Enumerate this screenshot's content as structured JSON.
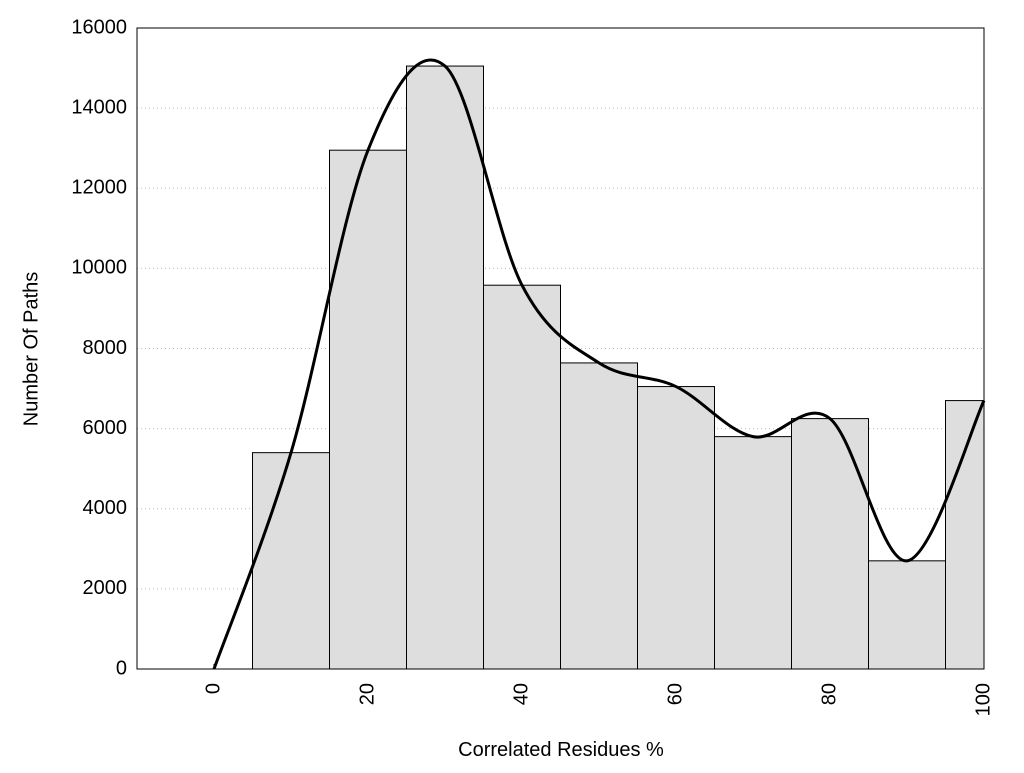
{
  "chart_data": {
    "type": "histogram",
    "xlabel": "Correlated Residues %",
    "ylabel": "Number Of Paths",
    "bins": [
      5,
      15,
      25,
      35,
      45,
      55,
      65,
      75,
      85,
      95,
      100
    ],
    "counts": [
      5400,
      12950,
      15050,
      9580,
      7640,
      7050,
      5800,
      6250,
      2700,
      6700
    ],
    "bar_color": "#dedede",
    "line": {
      "x": [
        0,
        10,
        20,
        30,
        40,
        50,
        60,
        70,
        80,
        90,
        100
      ],
      "values": [
        0,
        5400,
        12950,
        15050,
        9580,
        7640,
        7050,
        5800,
        6250,
        2700,
        6700
      ],
      "color": "#000000"
    },
    "xlim": [
      -10,
      100
    ],
    "ylim": [
      0,
      16000
    ],
    "xticks": [
      0,
      20,
      40,
      60,
      80,
      100
    ],
    "yticks": [
      0,
      2000,
      4000,
      6000,
      8000,
      10000,
      12000,
      14000,
      16000
    ],
    "grid": true
  }
}
